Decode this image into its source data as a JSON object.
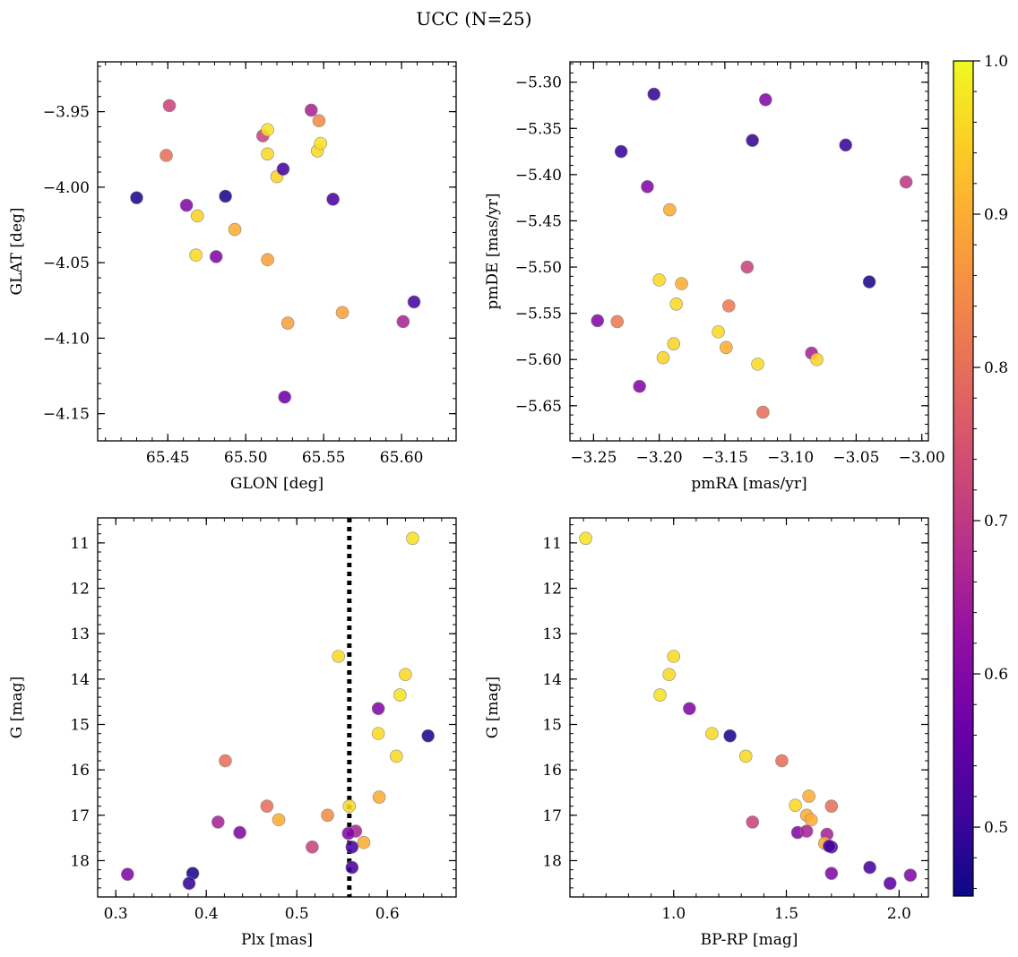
{
  "figure": {
    "title": "UCC (N=25)"
  },
  "colorbar": {
    "range": [
      0.455,
      1.0
    ],
    "ticks": [
      "0.5",
      "0.6",
      "0.7",
      "0.8",
      "0.9",
      "1.0"
    ],
    "tick_values": [
      0.5,
      0.6,
      0.7,
      0.8,
      0.9,
      1.0
    ],
    "colormap": "plasma"
  },
  "chart_data": [
    {
      "id": "panel-glon-glat",
      "type": "scatter",
      "xlabel": "GLON [deg]",
      "ylabel": "GLAT [deg]",
      "xlim": [
        65.405,
        65.635
      ],
      "ylim": [
        -4.168,
        -3.917
      ],
      "y_inverted": false,
      "xticks": [
        65.45,
        65.5,
        65.55,
        65.6
      ],
      "xtick_labels": [
        "65.45",
        "65.50",
        "65.55",
        "65.60"
      ],
      "yticks": [
        -3.95,
        -4.0,
        -4.05,
        -4.1,
        -4.15
      ],
      "ytick_labels": [
        "−3.95",
        "−4.00",
        "−4.05",
        "−4.10",
        "−4.15"
      ],
      "x": [
        65.451,
        65.449,
        65.43,
        65.462,
        65.469,
        65.468,
        65.481,
        65.487,
        65.493,
        65.511,
        65.514,
        65.514,
        65.52,
        65.524,
        65.514,
        65.527,
        65.525,
        65.542,
        65.547,
        65.546,
        65.548,
        65.556,
        65.562,
        65.601,
        65.608
      ],
      "y": [
        -3.946,
        -3.979,
        -4.007,
        -4.012,
        -4.019,
        -4.045,
        -4.046,
        -4.006,
        -4.028,
        -3.966,
        -3.962,
        -3.978,
        -3.993,
        -3.988,
        -4.048,
        -4.09,
        -4.139,
        -3.949,
        -3.956,
        -3.976,
        -3.971,
        -4.008,
        -4.083,
        -4.089,
        -4.076
      ],
      "c": [
        0.72,
        0.8,
        0.47,
        0.6,
        0.95,
        0.96,
        0.6,
        0.47,
        0.9,
        0.72,
        0.97,
        0.96,
        0.95,
        0.52,
        0.88,
        0.88,
        0.57,
        0.66,
        0.85,
        0.96,
        0.97,
        0.52,
        0.88,
        0.66,
        0.52
      ]
    },
    {
      "id": "panel-pmra-pmde",
      "type": "scatter",
      "xlabel": "pmRA [mas/yr]",
      "ylabel": "pmDE [mas/yr]",
      "xlim": [
        -3.268,
        -2.995
      ],
      "ylim": [
        -5.688,
        -5.278
      ],
      "y_inverted": false,
      "xticks": [
        -3.25,
        -3.2,
        -3.15,
        -3.1,
        -3.05,
        -3.0
      ],
      "xtick_labels": [
        "−3.25",
        "−3.20",
        "−3.15",
        "−3.10",
        "−3.05",
        "−3.00"
      ],
      "yticks": [
        -5.3,
        -5.35,
        -5.4,
        -5.45,
        -5.5,
        -5.55,
        -5.6,
        -5.65
      ],
      "ytick_labels": [
        "−5.30",
        "−5.35",
        "−5.40",
        "−5.45",
        "−5.50",
        "−5.55",
        "−5.60",
        "−5.65"
      ],
      "x": [
        -3.204,
        -3.229,
        -3.209,
        -3.192,
        -3.119,
        -3.129,
        -3.058,
        -3.012,
        -3.2,
        -3.183,
        -3.187,
        -3.133,
        -3.147,
        -3.155,
        -3.247,
        -3.232,
        -3.189,
        -3.197,
        -3.149,
        -3.125,
        -3.084,
        -3.08,
        -3.215,
        -3.121,
        -3.04
      ],
      "y": [
        -5.313,
        -5.375,
        -5.413,
        -5.438,
        -5.319,
        -5.363,
        -5.368,
        -5.408,
        -5.514,
        -5.518,
        -5.54,
        -5.5,
        -5.542,
        -5.57,
        -5.558,
        -5.559,
        -5.583,
        -5.598,
        -5.587,
        -5.605,
        -5.593,
        -5.6,
        -5.629,
        -5.657,
        -5.516
      ],
      "c": [
        0.5,
        0.5,
        0.6,
        0.9,
        0.6,
        0.5,
        0.5,
        0.7,
        0.96,
        0.9,
        0.96,
        0.72,
        0.82,
        0.96,
        0.6,
        0.82,
        0.95,
        0.95,
        0.9,
        0.96,
        0.66,
        0.95,
        0.6,
        0.8,
        0.47
      ]
    },
    {
      "id": "panel-plx-g",
      "type": "scatter",
      "xlabel": "Plx [mas]",
      "ylabel": "G [mag]",
      "xlim": [
        0.28,
        0.676
      ],
      "ylim": [
        18.8,
        10.45
      ],
      "y_inverted": true,
      "vline": 0.558,
      "xticks": [
        0.3,
        0.4,
        0.5,
        0.6
      ],
      "xtick_labels": [
        "0.3",
        "0.4",
        "0.5",
        "0.6"
      ],
      "yticks": [
        11,
        12,
        13,
        14,
        15,
        16,
        17,
        18
      ],
      "ytick_labels": [
        "11",
        "12",
        "13",
        "14",
        "15",
        "16",
        "17",
        "18"
      ],
      "x": [
        0.628,
        0.546,
        0.62,
        0.614,
        0.645,
        0.59,
        0.59,
        0.421,
        0.61,
        0.467,
        0.558,
        0.591,
        0.48,
        0.534,
        0.413,
        0.565,
        0.557,
        0.437,
        0.574,
        0.517,
        0.561,
        0.561,
        0.313,
        0.385,
        0.381
      ],
      "y": [
        10.9,
        13.5,
        13.9,
        14.35,
        15.25,
        14.65,
        15.2,
        15.8,
        15.7,
        16.8,
        16.8,
        16.6,
        17.1,
        17.0,
        17.15,
        17.35,
        17.4,
        17.38,
        17.6,
        17.7,
        17.7,
        18.15,
        18.3,
        18.28,
        18.5
      ],
      "c": [
        0.97,
        0.96,
        0.96,
        0.97,
        0.47,
        0.6,
        0.96,
        0.8,
        0.96,
        0.8,
        0.96,
        0.9,
        0.9,
        0.85,
        0.66,
        0.66,
        0.6,
        0.6,
        0.9,
        0.72,
        0.52,
        0.52,
        0.6,
        0.47,
        0.5
      ]
    },
    {
      "id": "panel-bprp-g",
      "type": "scatter",
      "xlabel": "BP-RP [mag]",
      "ylabel": "G [mag]",
      "xlim": [
        0.54,
        2.13
      ],
      "ylim": [
        18.8,
        10.45
      ],
      "y_inverted": true,
      "xticks": [
        1.0,
        1.5,
        2.0
      ],
      "xtick_labels": [
        "1.0",
        "1.5",
        "2.0"
      ],
      "yticks": [
        11,
        12,
        13,
        14,
        15,
        16,
        17,
        18
      ],
      "ytick_labels": [
        "11",
        "12",
        "13",
        "14",
        "15",
        "16",
        "17",
        "18"
      ],
      "x": [
        0.61,
        1.0,
        0.98,
        0.94,
        1.07,
        1.17,
        1.25,
        1.32,
        1.48,
        1.54,
        1.6,
        1.59,
        1.61,
        1.7,
        1.35,
        1.55,
        1.59,
        1.68,
        1.67,
        1.7,
        1.69,
        1.87,
        2.05,
        1.7,
        1.96
      ],
      "y": [
        10.9,
        13.5,
        13.9,
        14.35,
        14.65,
        15.2,
        15.25,
        15.7,
        15.8,
        16.78,
        16.58,
        17.0,
        17.1,
        16.8,
        17.15,
        17.38,
        17.35,
        17.42,
        17.62,
        17.7,
        17.68,
        18.15,
        18.32,
        18.28,
        18.5
      ],
      "c": [
        0.97,
        0.96,
        0.96,
        0.97,
        0.6,
        0.96,
        0.47,
        0.96,
        0.8,
        0.96,
        0.9,
        0.9,
        0.9,
        0.8,
        0.72,
        0.6,
        0.66,
        0.66,
        0.9,
        0.52,
        0.52,
        0.52,
        0.6,
        0.6,
        0.55
      ]
    }
  ]
}
